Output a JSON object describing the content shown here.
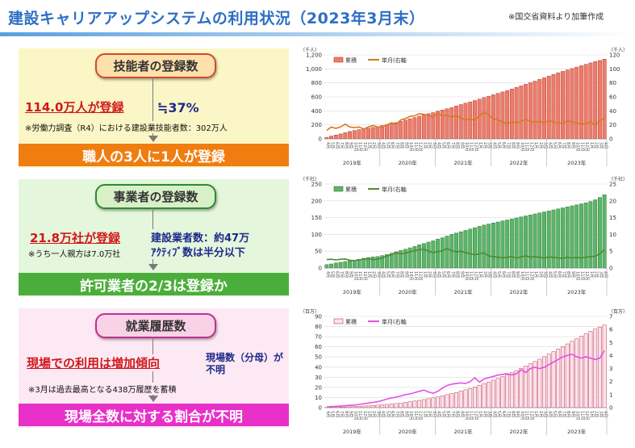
{
  "header": {
    "title": "建設キャリアアップシステムの利用状況（2023年3月末）",
    "note": "※国交省資料より加筆作成"
  },
  "panels": {
    "workers": {
      "pill": "技能者の登録数",
      "main": "114.0万人が登録",
      "ratio": "≒37%",
      "sub": "※労働力調査（R4）における建設業技能者数：302万人",
      "band": "職人の3人に1人が登録",
      "color": "#f07d10"
    },
    "companies": {
      "pill": "事業者の登録数",
      "main": "21.8万社が登録",
      "sub": "※うち一人親方は7.0万社",
      "right1": "建設業者数：約47万",
      "right2": "ｱｸﾃｨﾌﾞ数は半分以下",
      "band": "許可業者の2/3は登録か",
      "color": "#4cae3a"
    },
    "history": {
      "pill": "就業履歴数",
      "main": "現場での利用は増加傾向",
      "right": "現場数（分母）が不明",
      "sub": "※3月は過去最高となる438万履歴を蓄積",
      "band": "現場全数に対する割合が不明",
      "color": "#e830c8"
    }
  },
  "chart_data": [
    {
      "type": "bar",
      "yunit_left": "（千人）",
      "yunit_right": "（千人）",
      "ylim": [
        0,
        1200
      ],
      "yticks": [
        0,
        200,
        400,
        600,
        800,
        1000,
        1200
      ],
      "y2lim": [
        0,
        120
      ],
      "y2ticks": [
        0,
        20,
        40,
        60,
        80,
        100,
        120
      ],
      "legend": [
        "累積",
        "単月(右軸"
      ],
      "legend_position": "top-left",
      "bar_color": "#ec7d6c",
      "bar_edge": "#c0392b",
      "line_color": "#d97a1e",
      "month_labels": [
        "4月",
        "5月",
        "6月",
        "7月",
        "8月",
        "9月",
        "10月",
        "11月",
        "12月",
        "1月",
        "2月",
        "3月"
      ],
      "year_labels": [
        "2019年",
        "2020年",
        "2021年",
        "2022年",
        "2023年"
      ],
      "series": [
        {
          "name": "累積",
          "axis": "left",
          "values": [
            22,
            40,
            55,
            70,
            88,
            105,
            120,
            132,
            140,
            150,
            163,
            175,
            190,
            203,
            218,
            232,
            250,
            268,
            286,
            305,
            325,
            342,
            360,
            375,
            395,
            412,
            430,
            448,
            470,
            490,
            510,
            528,
            548,
            568,
            590,
            610,
            630,
            650,
            670,
            690,
            712,
            735,
            757,
            780,
            803,
            825,
            850,
            873,
            897,
            920,
            943,
            965,
            985,
            1005,
            1025,
            1045,
            1065,
            1085,
            1105,
            1120,
            1140
          ]
        },
        {
          "name": "単月(右軸",
          "axis": "right",
          "values": [
            12,
            17,
            15,
            17,
            21,
            17,
            16,
            17,
            14,
            17,
            19,
            17,
            17,
            20,
            23,
            21,
            27,
            29,
            32,
            33,
            36,
            35,
            33,
            31,
            36,
            33,
            34,
            31,
            33,
            30,
            27,
            28,
            27,
            33,
            38,
            34,
            29,
            27,
            24,
            22,
            24,
            23,
            25,
            28,
            25,
            24,
            25,
            23,
            26,
            24,
            23,
            22,
            26,
            24,
            23,
            21,
            22,
            24,
            20,
            26,
            30
          ]
        }
      ]
    },
    {
      "type": "bar",
      "yunit_left": "（千社）",
      "yunit_right": "（千社）",
      "ylim": [
        0,
        250
      ],
      "yticks": [
        0,
        50,
        100,
        150,
        200,
        250
      ],
      "y2lim": [
        0,
        25
      ],
      "y2ticks": [
        0,
        5,
        10,
        15,
        20,
        25
      ],
      "legend": [
        "累積",
        "単月(右軸"
      ],
      "legend_position": "top-left",
      "bar_color": "#5bb56a",
      "bar_edge": "#2e7d32",
      "line_color": "#4f8a2f",
      "month_labels": [
        "4月",
        "5月",
        "6月",
        "7月",
        "8月",
        "9月",
        "10月",
        "11月",
        "12月",
        "1月",
        "2月",
        "3月"
      ],
      "year_labels": [
        "2019年",
        "2020年",
        "2021年",
        "2022年",
        "2023年"
      ],
      "series": [
        {
          "name": "累積",
          "axis": "left",
          "values": [
            10,
            12,
            15,
            17,
            19,
            21,
            23,
            26,
            29,
            31,
            33,
            34,
            37,
            40,
            44,
            48,
            52,
            56,
            60,
            64,
            69,
            73,
            77,
            81,
            86,
            90,
            95,
            100,
            104,
            108,
            112,
            116,
            120,
            124,
            128,
            131,
            134,
            137,
            140,
            143,
            146,
            149,
            152,
            155,
            158,
            161,
            164,
            167,
            170,
            173,
            176,
            179,
            182,
            185,
            188,
            191,
            194,
            198,
            203,
            210,
            218
          ]
        },
        {
          "name": "単月(右軸",
          "axis": "right",
          "values": [
            2.5,
            2.6,
            2.4,
            2.6,
            2.7,
            2.3,
            2.2,
            2.4,
            2.6,
            2.8,
            2.5,
            2.6,
            3.0,
            3.6,
            3.9,
            4.6,
            4.2,
            4.4,
            4.8,
            5.2,
            5.4,
            5.6,
            5.0,
            4.6,
            4.8,
            5.2,
            5.8,
            5.2,
            4.8,
            5.0,
            4.6,
            4.2,
            4.0,
            4.2,
            4.5,
            3.6,
            3.4,
            3.2,
            3.0,
            3.2,
            3.4,
            3.0,
            3.3,
            3.6,
            3.2,
            3.4,
            3.2,
            3.0,
            3.3,
            3.2,
            3.0,
            2.9,
            3.2,
            3.0,
            3.1,
            3.0,
            3.2,
            3.4,
            3.5,
            4.2,
            5.5
          ]
        }
      ]
    },
    {
      "type": "bar",
      "yunit_left": "（百万）",
      "yunit_right": "（百万）",
      "ylim": [
        0,
        90
      ],
      "yticks": [
        0,
        10,
        20,
        30,
        40,
        50,
        60,
        70,
        80,
        90
      ],
      "y2lim": [
        0,
        7
      ],
      "y2ticks": [
        0,
        1,
        2,
        3,
        4,
        5,
        6,
        7
      ],
      "legend": [
        "累積",
        "単月(右軸"
      ],
      "legend_position": "top-left",
      "bar_color": "#fbe3ea",
      "bar_edge": "#c0395a",
      "line_color": "#e84ee8",
      "month_labels": [
        "4月",
        "5月",
        "6月",
        "7月",
        "8月",
        "9月",
        "10月",
        "11月",
        "12月",
        "1月",
        "2月",
        "3月"
      ],
      "year_labels": [
        "2019年",
        "2020年",
        "2021年",
        "2022年",
        "2023年"
      ],
      "series": [
        {
          "name": "累積",
          "axis": "left",
          "values": [
            0.1,
            0.2,
            0.3,
            0.5,
            0.7,
            0.9,
            1.1,
            1.3,
            1.6,
            1.9,
            2.2,
            2.5,
            2.8,
            3.2,
            3.6,
            4.1,
            4.6,
            5.2,
            5.8,
            6.5,
            7.2,
            8.0,
            8.8,
            9.7,
            10.6,
            11.7,
            12.8,
            13.9,
            15.0,
            16.3,
            17.6,
            19.0,
            20.5,
            22.0,
            23.6,
            25.3,
            27.0,
            28.8,
            30.7,
            32.6,
            34.6,
            36.6,
            38.8,
            41.0,
            43.2,
            45.5,
            47.8,
            50.3,
            52.8,
            55.3,
            57.8,
            60.3,
            62.9,
            65.5,
            68.0,
            70.5,
            72.8,
            75.2,
            77.5,
            79.5,
            81.5
          ]
        },
        {
          "name": "単月(右軸",
          "axis": "right",
          "values": [
            0.05,
            0.08,
            0.1,
            0.12,
            0.15,
            0.18,
            0.2,
            0.25,
            0.3,
            0.35,
            0.4,
            0.45,
            0.55,
            0.65,
            0.75,
            0.8,
            0.9,
            1.0,
            1.05,
            1.15,
            1.25,
            1.35,
            1.2,
            1.1,
            1.25,
            1.5,
            1.7,
            1.8,
            1.85,
            1.9,
            1.85,
            2.0,
            2.3,
            1.95,
            2.2,
            2.3,
            2.4,
            2.5,
            2.55,
            2.6,
            2.5,
            2.6,
            2.9,
            2.7,
            3.0,
            3.1,
            3.0,
            3.1,
            3.3,
            3.5,
            3.7,
            3.9,
            4.0,
            4.1,
            3.9,
            3.8,
            3.9,
            3.8,
            3.7,
            3.8,
            4.38
          ]
        }
      ]
    }
  ]
}
